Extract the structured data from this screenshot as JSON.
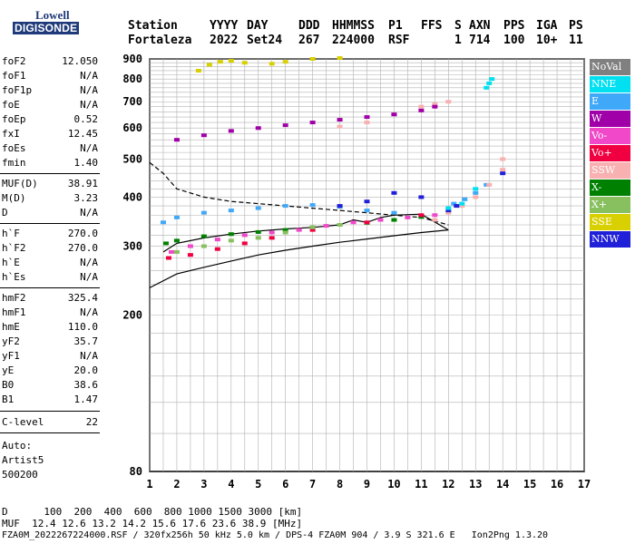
{
  "logo": {
    "line1": "Lowell",
    "line2": "DIGISONDE"
  },
  "header": {
    "labels": [
      "Station",
      "YYYY",
      "DAY",
      "DDD",
      "HHMMSS",
      "P1",
      "FFS",
      "S",
      "AXN",
      "PPS",
      "IGA",
      "PS"
    ],
    "values": [
      "Fortaleza",
      "2022",
      "Set24",
      "267",
      "224000",
      "RSF",
      "1",
      "714",
      "100",
      "10+",
      "11"
    ]
  },
  "params": {
    "group1": [
      {
        "k": "foF2",
        "v": "12.050"
      },
      {
        "k": "foF1",
        "v": "N/A"
      },
      {
        "k": "foF1p",
        "v": "N/A"
      },
      {
        "k": "foE",
        "v": "N/A"
      },
      {
        "k": "foEp",
        "v": "0.52"
      },
      {
        "k": "fxI",
        "v": "12.45"
      },
      {
        "k": "foEs",
        "v": "N/A"
      },
      {
        "k": "fmin",
        "v": "1.40"
      }
    ],
    "group2": [
      {
        "k": "MUF(D)",
        "v": "38.91"
      },
      {
        "k": "M(D)",
        "v": "3.23"
      },
      {
        "k": "D",
        "v": "N/A"
      }
    ],
    "group3": [
      {
        "k": "h`F",
        "v": "270.0"
      },
      {
        "k": "h`F2",
        "v": "270.0"
      },
      {
        "k": "h`E",
        "v": "N/A"
      },
      {
        "k": "h`Es",
        "v": "N/A"
      }
    ],
    "group4": [
      {
        "k": "hmF2",
        "v": "325.4"
      },
      {
        "k": "hmF1",
        "v": "N/A"
      },
      {
        "k": "hmE",
        "v": "110.0"
      },
      {
        "k": "yF2",
        "v": "35.7"
      },
      {
        "k": "yF1",
        "v": "N/A"
      },
      {
        "k": "yE",
        "v": "20.0"
      },
      {
        "k": "B0",
        "v": "38.6"
      },
      {
        "k": "B1",
        "v": "1.47"
      }
    ],
    "group5": [
      {
        "k": "C-level",
        "v": "22"
      }
    ],
    "auto": [
      "Auto:",
      "Artist5",
      "500200"
    ]
  },
  "footer": {
    "d_line": "D      100  200  400  600  800 1000 1500 3000 [km]",
    "muf_line": "MUF  12.4 12.6 13.2 14.2 15.6 17.6 23.6 38.9 [MHz]",
    "file_line": "FZA0M_2022267224000.RSF / 320fx256h 50 kHz 5.0 km / DPS-4 FZA0M 904 / 3.9 S 321.6 E   Ion2Png 1.3.20"
  },
  "legend": [
    {
      "label": "NoVal",
      "color": "#808080"
    },
    {
      "label": "NNE",
      "color": "#00e0f0"
    },
    {
      "label": "E",
      "color": "#40a8f8"
    },
    {
      "label": "W",
      "color": "#a000a8"
    },
    {
      "label": "Vo-",
      "color": "#f048c8"
    },
    {
      "label": "Vo+",
      "color": "#f00040"
    },
    {
      "label": "SSW",
      "color": "#f8b0b0"
    },
    {
      "label": "X-",
      "color": "#008000"
    },
    {
      "label": "X+",
      "color": "#88c060"
    },
    {
      "label": "SSE",
      "color": "#d8d000"
    },
    {
      "label": "NNW",
      "color": "#2020d8"
    }
  ],
  "chart_data": {
    "type": "scatter",
    "xlabel": "",
    "ylabel": "",
    "xlim": [
      1,
      17
    ],
    "ylim": [
      80,
      900
    ],
    "yscale": "log",
    "x_ticks": [
      1,
      2,
      3,
      4,
      5,
      6,
      7,
      8,
      9,
      10,
      11,
      12,
      13,
      14,
      15,
      16,
      17
    ],
    "y_ticks": [
      80,
      200,
      300,
      400,
      500,
      600,
      700,
      800,
      900
    ],
    "grid": true,
    "series": [
      {
        "name": "E",
        "color": "#40a8f8",
        "points": [
          [
            1.5,
            345
          ],
          [
            2,
            355
          ],
          [
            3,
            365
          ],
          [
            4,
            370
          ],
          [
            5,
            375
          ],
          [
            6,
            380
          ],
          [
            7,
            382
          ],
          [
            8,
            378
          ],
          [
            9,
            370
          ],
          [
            10,
            365
          ],
          [
            11,
            358
          ],
          [
            12.2,
            385
          ],
          [
            12.6,
            395
          ],
          [
            13,
            410
          ],
          [
            13.4,
            430
          ]
        ]
      },
      {
        "name": "X-",
        "color": "#008000",
        "points": [
          [
            1.6,
            305
          ],
          [
            2,
            310
          ],
          [
            3,
            318
          ],
          [
            4,
            322
          ],
          [
            5,
            326
          ],
          [
            6,
            330
          ],
          [
            7,
            335
          ],
          [
            8,
            340
          ],
          [
            9,
            344
          ],
          [
            10,
            350
          ],
          [
            11,
            356
          ]
        ]
      },
      {
        "name": "Vo-",
        "color": "#f048c8",
        "points": [
          [
            1.8,
            290
          ],
          [
            2.5,
            300
          ],
          [
            3.5,
            312
          ],
          [
            4.5,
            320
          ],
          [
            5.5,
            325
          ],
          [
            6.5,
            330
          ],
          [
            7.5,
            338
          ],
          [
            8.5,
            345
          ],
          [
            9.5,
            350
          ],
          [
            10.5,
            355
          ],
          [
            11.5,
            360
          ]
        ]
      },
      {
        "name": "SSW",
        "color": "#f8b0b0",
        "points": [
          [
            11.5,
            350
          ],
          [
            12,
            365
          ],
          [
            12.5,
            380
          ],
          [
            13,
            400
          ],
          [
            13.5,
            430
          ],
          [
            14,
            470
          ],
          [
            14,
            500
          ],
          [
            8,
            605
          ],
          [
            9,
            620
          ],
          [
            10,
            650
          ],
          [
            11,
            680
          ],
          [
            11.5,
            690
          ],
          [
            12,
            700
          ]
        ]
      },
      {
        "name": "NNW",
        "color": "#2020d8",
        "points": [
          [
            8,
            380
          ],
          [
            9,
            390
          ],
          [
            10,
            410
          ],
          [
            11,
            400
          ],
          [
            12,
            370
          ],
          [
            12.3,
            380
          ],
          [
            14,
            460
          ]
        ]
      },
      {
        "name": "Vo+",
        "color": "#f00040",
        "points": [
          [
            1.7,
            280
          ],
          [
            2.5,
            285
          ],
          [
            3.5,
            295
          ],
          [
            4.5,
            305
          ],
          [
            5.5,
            315
          ],
          [
            7,
            330
          ],
          [
            9,
            345
          ],
          [
            11,
            360
          ]
        ]
      },
      {
        "name": "SSE",
        "color": "#d8d000",
        "points": [
          [
            2.8,
            840
          ],
          [
            3.2,
            870
          ],
          [
            3.6,
            885
          ],
          [
            4,
            890
          ],
          [
            4.5,
            880
          ],
          [
            5.5,
            875
          ],
          [
            6,
            885
          ],
          [
            7,
            900
          ],
          [
            8,
            905
          ]
        ]
      },
      {
        "name": "W",
        "color": "#a000a8",
        "points": [
          [
            2,
            560
          ],
          [
            3,
            575
          ],
          [
            4,
            590
          ],
          [
            5,
            600
          ],
          [
            6,
            610
          ],
          [
            7,
            620
          ],
          [
            8,
            630
          ],
          [
            9,
            640
          ],
          [
            10,
            650
          ],
          [
            11,
            665
          ],
          [
            11.5,
            680
          ]
        ]
      },
      {
        "name": "NNE",
        "color": "#00e0f0",
        "points": [
          [
            12,
            375
          ],
          [
            12.5,
            385
          ],
          [
            13,
            420
          ],
          [
            13.4,
            760
          ],
          [
            13.5,
            780
          ],
          [
            13.6,
            800
          ]
        ]
      },
      {
        "name": "X+",
        "color": "#88c060",
        "points": [
          [
            2,
            290
          ],
          [
            3,
            300
          ],
          [
            4,
            310
          ],
          [
            5,
            315
          ],
          [
            6,
            325
          ],
          [
            7,
            335
          ],
          [
            8,
            340
          ]
        ]
      }
    ],
    "lines": [
      {
        "name": "dashed",
        "style": "dashed",
        "points": [
          [
            1,
            490
          ],
          [
            1.5,
            460
          ],
          [
            2,
            420
          ],
          [
            3,
            400
          ],
          [
            4,
            390
          ],
          [
            5,
            385
          ],
          [
            6,
            380
          ],
          [
            7,
            375
          ],
          [
            8,
            370
          ],
          [
            9,
            365
          ],
          [
            10,
            360
          ],
          [
            11,
            355
          ],
          [
            12,
            340
          ]
        ]
      },
      {
        "name": "trace",
        "style": "solid",
        "points": [
          [
            1.5,
            290
          ],
          [
            2,
            305
          ],
          [
            3,
            315
          ],
          [
            4,
            322
          ],
          [
            5,
            328
          ],
          [
            6,
            332
          ],
          [
            7,
            335
          ],
          [
            8,
            340
          ],
          [
            8.5,
            350
          ],
          [
            9,
            345
          ],
          [
            9.5,
            355
          ],
          [
            10,
            360
          ],
          [
            11,
            362
          ],
          [
            12,
            330
          ]
        ]
      },
      {
        "name": "profile",
        "style": "solid",
        "points": [
          [
            1,
            235
          ],
          [
            2,
            255
          ],
          [
            3,
            265
          ],
          [
            4,
            275
          ],
          [
            5,
            285
          ],
          [
            6,
            293
          ],
          [
            7,
            300
          ],
          [
            8,
            307
          ],
          [
            9,
            313
          ],
          [
            10,
            319
          ],
          [
            11,
            325
          ],
          [
            12,
            330
          ]
        ]
      }
    ]
  }
}
